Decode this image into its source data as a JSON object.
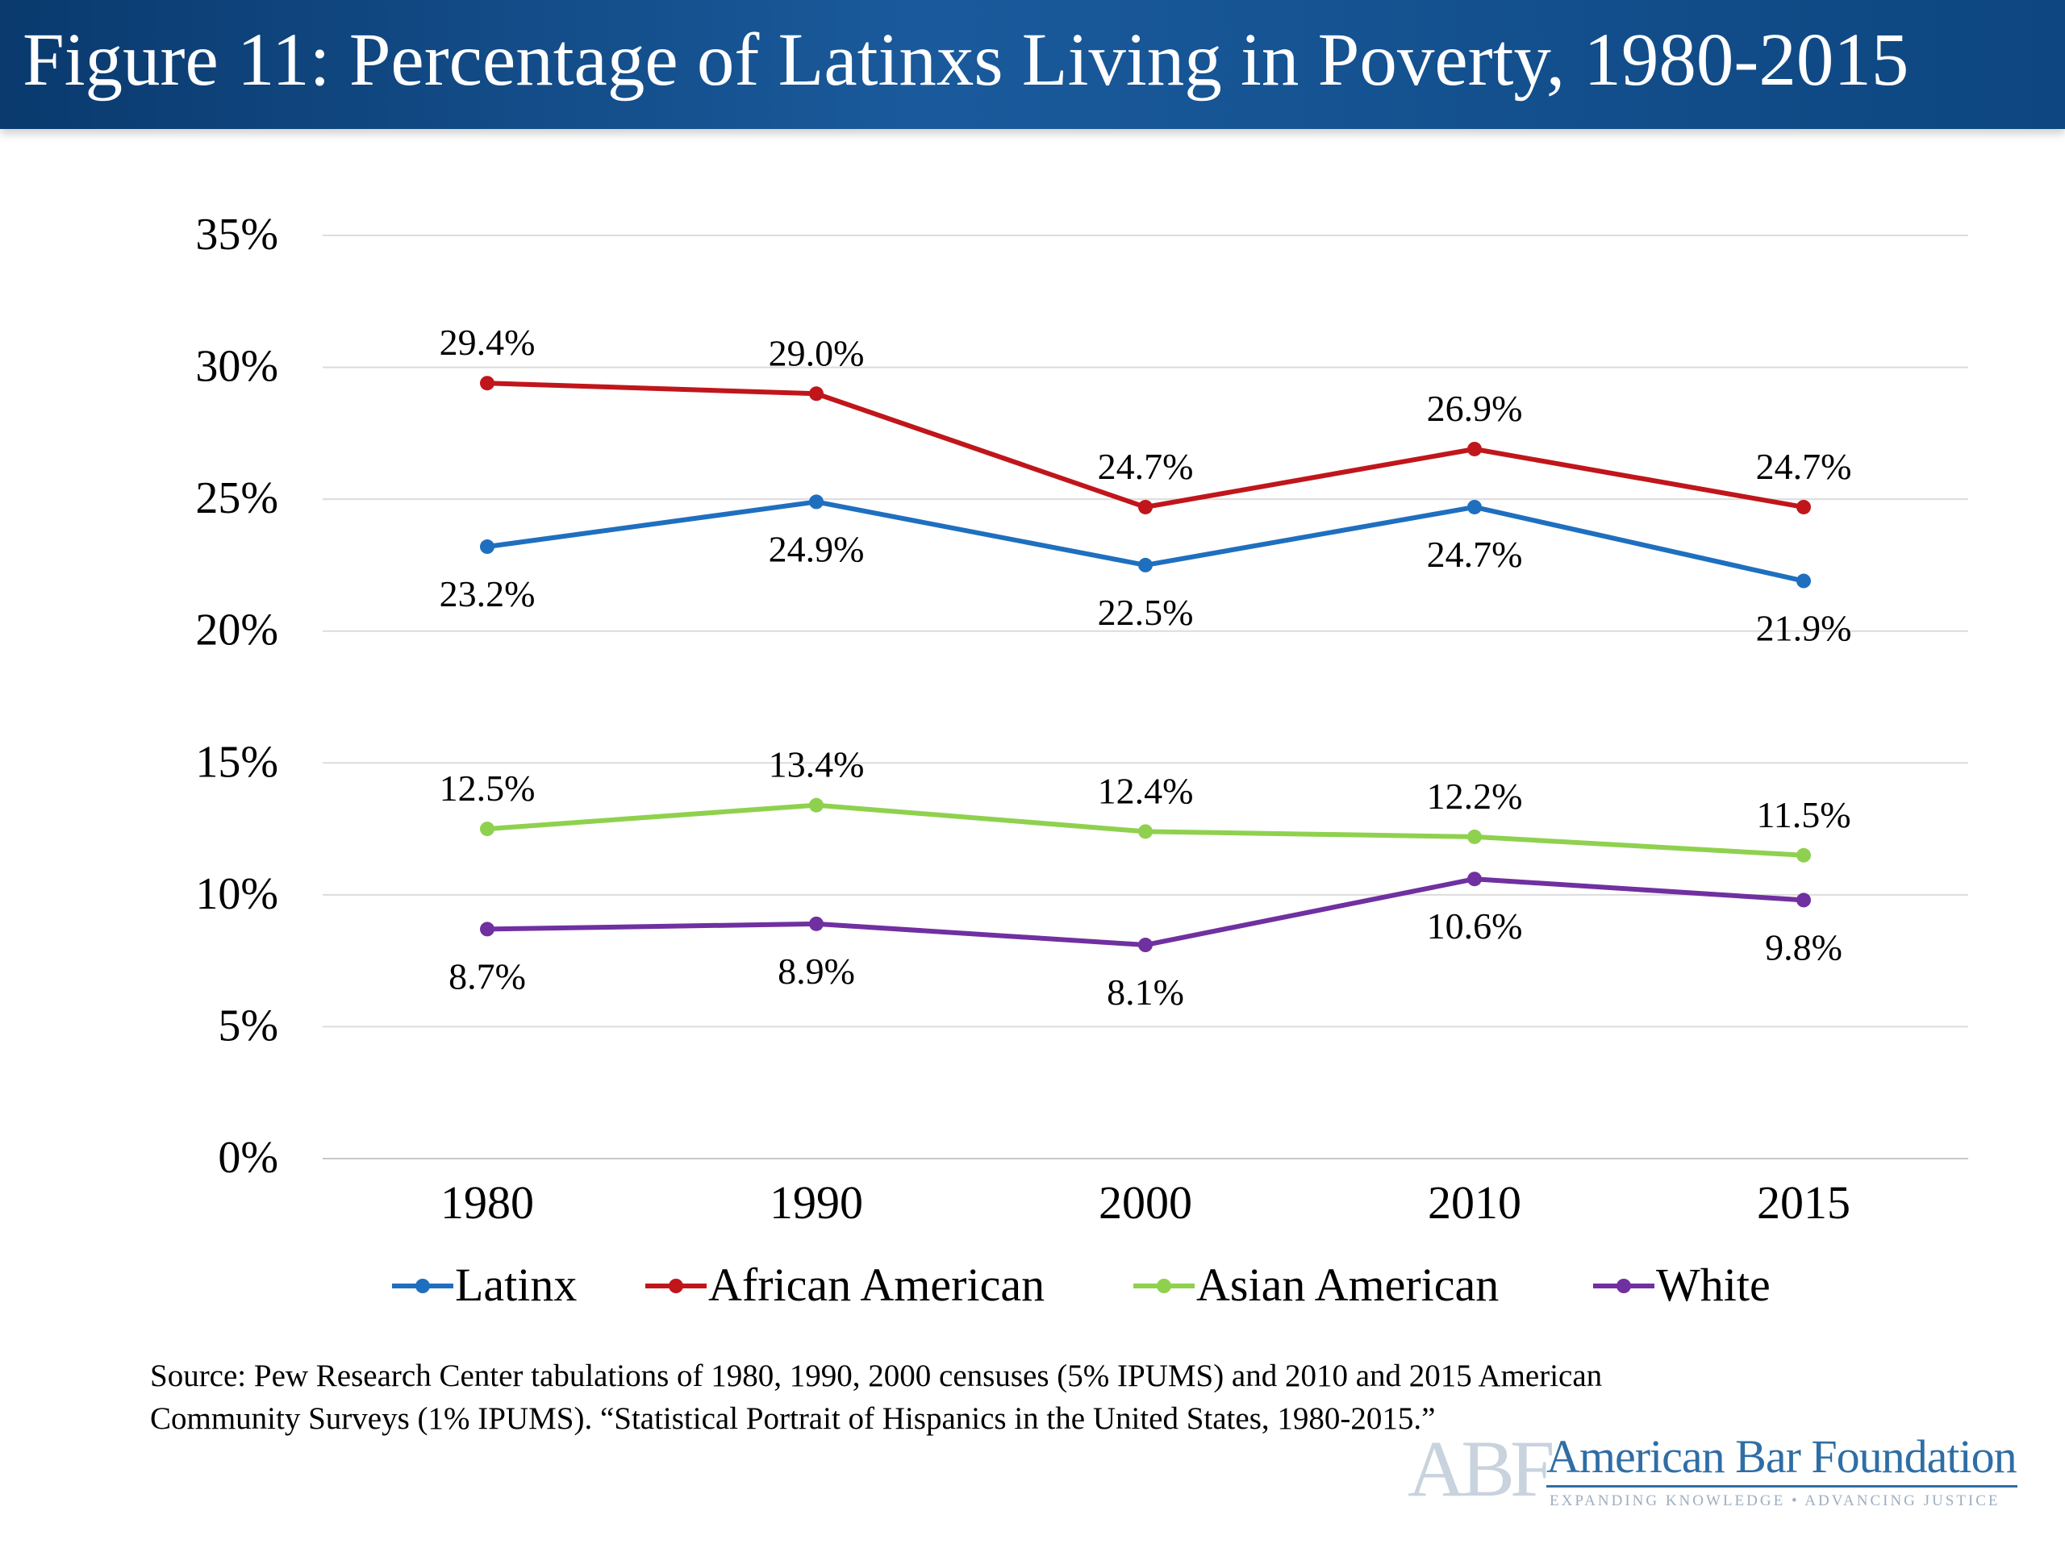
{
  "header": {
    "title": "Figure 11: Percentage of Latinxs Living in Poverty, 1980-2015"
  },
  "chart_data": {
    "type": "line",
    "title": "Figure 11: Percentage of Latinxs Living in Poverty, 1980-2015",
    "categories": [
      "1980",
      "1990",
      "2000",
      "2010",
      "2015"
    ],
    "y_ticks": [
      "0%",
      "5%",
      "10%",
      "15%",
      "20%",
      "25%",
      "30%",
      "35%"
    ],
    "ylim": [
      0,
      35
    ],
    "grid": true,
    "legend_position": "bottom",
    "series": [
      {
        "name": "Latinx",
        "color": "#1f6fbf",
        "values": [
          23.2,
          24.9,
          22.5,
          24.7,
          21.9
        ],
        "labels": [
          "23.2%",
          "24.9%",
          "22.5%",
          "24.7%",
          "21.9%"
        ],
        "label_side": [
          "below",
          "below",
          "below",
          "below",
          "below"
        ]
      },
      {
        "name": "African American",
        "color": "#c0161b",
        "values": [
          29.4,
          29.0,
          24.7,
          26.9,
          24.7
        ],
        "labels": [
          "29.4%",
          "29.0%",
          "24.7%",
          "26.9%",
          "24.7%"
        ],
        "label_side": [
          "above",
          "above",
          "above",
          "above",
          "above"
        ]
      },
      {
        "name": "Asian American",
        "color": "#8fd14f",
        "values": [
          12.5,
          13.4,
          12.4,
          12.2,
          11.5
        ],
        "labels": [
          "12.5%",
          "13.4%",
          "12.4%",
          "12.2%",
          "11.5%"
        ],
        "label_side": [
          "above",
          "above",
          "above",
          "above",
          "above"
        ]
      },
      {
        "name": "White",
        "color": "#7030a0",
        "values": [
          8.7,
          8.9,
          8.1,
          10.6,
          9.8
        ],
        "labels": [
          "8.7%",
          "8.9%",
          "8.1%",
          "10.6%",
          "9.8%"
        ],
        "label_side": [
          "below",
          "below",
          "below",
          "below",
          "below"
        ]
      }
    ]
  },
  "source": {
    "line1": "Source: Pew Research Center tabulations of 1980, 1990, 2000 censuses (5% IPUMS) and 2010 and 2015 American",
    "line2": "Community Surveys (1% IPUMS). “Statistical Portrait of Hispanics in the United States, 1980-2015.”"
  },
  "logo": {
    "initials": "ABF",
    "name": "American Bar Foundation",
    "tagline": "EXPANDING KNOWLEDGE • ADVANCING JUSTICE"
  }
}
